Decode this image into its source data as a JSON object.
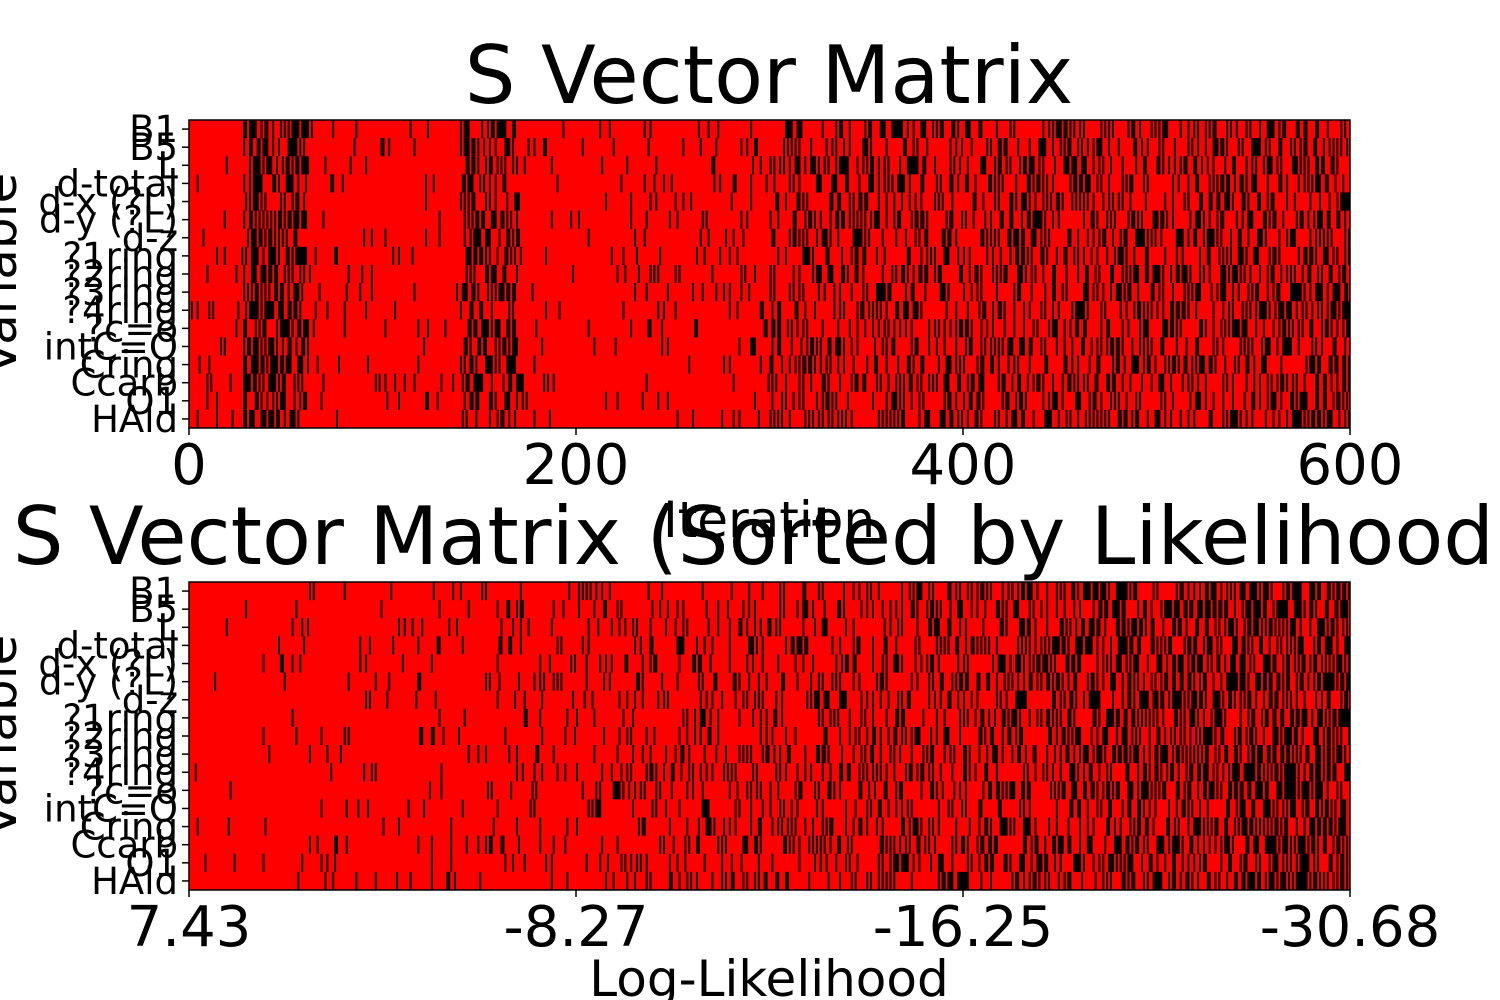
{
  "chart_data": [
    {
      "type": "heatmap",
      "title": "S Vector Matrix",
      "xlabel": "Iteration",
      "ylabel": "Variable",
      "x_ticks": [
        "0",
        "200",
        "400",
        "600"
      ],
      "x_range": [
        0,
        600
      ],
      "y_categories": [
        "B1",
        "B5",
        "L",
        "d-total",
        "d-x (?L)",
        "d-y (?L)",
        "d-z",
        "?1ring",
        "?2ring",
        "?3ring",
        "?4ring",
        "?c=o",
        "intC=O",
        "Cring",
        "Ccarb",
        "O1",
        "HAld"
      ],
      "colors": {
        "selected": "#000000",
        "not_selected": "#ff0000"
      },
      "n_columns": 600
    },
    {
      "type": "heatmap",
      "title": "S Vector Matrix (Sorted by Likelihood)",
      "xlabel": "Log-Likelihood",
      "ylabel": "Variable",
      "x_ticks": [
        "7.43",
        "-8.27",
        "-16.25",
        "-30.68"
      ],
      "y_categories": [
        "B1",
        "B5",
        "L",
        "d-total",
        "d-x (?L)",
        "d-y (?L)",
        "d-z",
        "?1ring",
        "?2ring",
        "?3ring",
        "?4ring",
        "?c=o",
        "intC=O",
        "Cring",
        "Ccarb",
        "O1",
        "HAld"
      ],
      "colors": {
        "selected": "#000000",
        "not_selected": "#ff0000"
      },
      "n_columns": 600
    }
  ]
}
